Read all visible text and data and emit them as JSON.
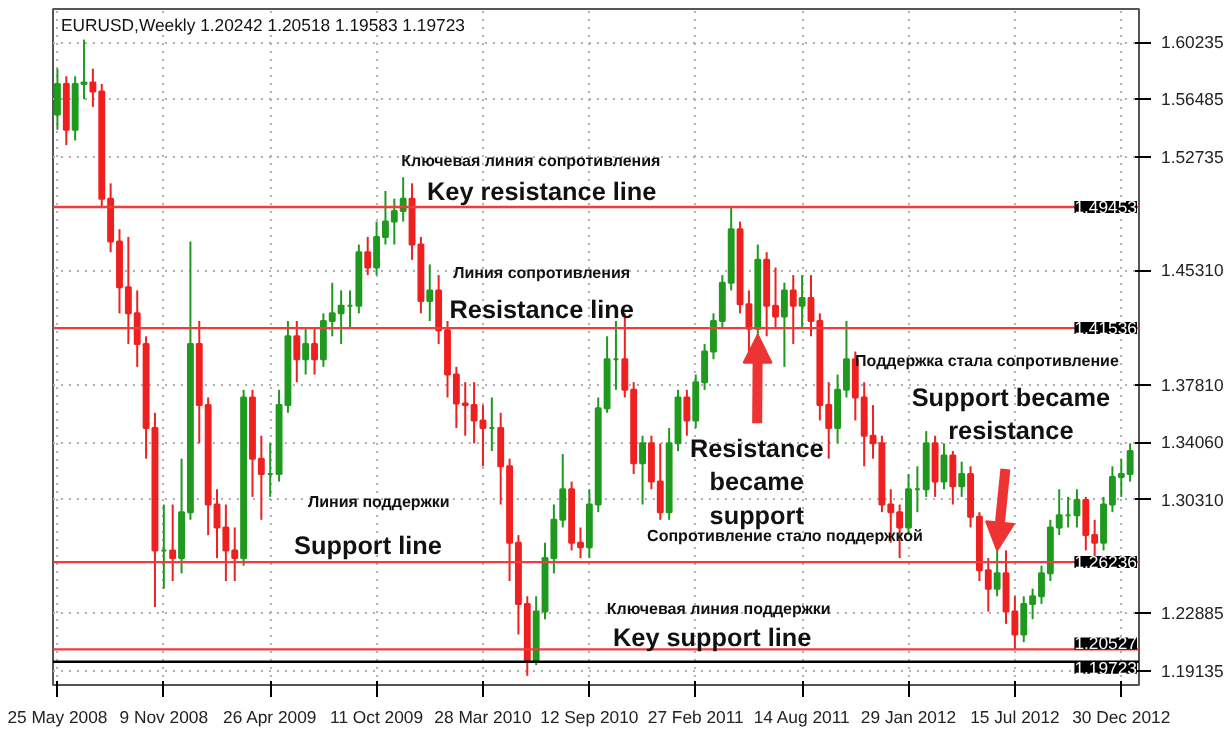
{
  "chart_data": {
    "type": "candlestick",
    "title": "EURUSD,Weekly  1.20242 1.20518 1.19583 1.19723",
    "x": [
      "2008-05-25",
      "2008-06-08",
      "2008-06-22",
      "2008-07-06",
      "2008-07-20",
      "2008-08-03",
      "2008-08-17",
      "2008-08-31",
      "2008-09-14",
      "2008-09-28",
      "2008-10-12",
      "2008-10-26",
      "2008-11-09",
      "2008-11-23",
      "2008-12-07",
      "2008-12-21",
      "2009-01-04",
      "2009-01-18",
      "2009-02-01",
      "2009-02-15",
      "2009-03-01",
      "2009-03-15",
      "2009-03-29",
      "2009-04-12",
      "2009-04-26",
      "2009-05-10",
      "2009-05-24",
      "2009-06-07",
      "2009-06-21",
      "2009-07-05",
      "2009-07-19",
      "2009-08-02",
      "2009-08-16",
      "2009-08-30",
      "2009-09-13",
      "2009-09-27",
      "2009-10-11",
      "2009-10-25",
      "2009-11-08",
      "2009-11-22",
      "2009-12-06",
      "2009-12-20",
      "2010-01-03",
      "2010-01-17",
      "2010-01-31",
      "2010-02-14",
      "2010-02-28",
      "2010-03-14",
      "2010-03-28",
      "2010-04-11",
      "2010-04-25",
      "2010-05-09",
      "2010-05-23",
      "2010-06-06",
      "2010-06-20",
      "2010-07-04",
      "2010-07-18",
      "2010-08-01",
      "2010-08-15",
      "2010-08-29",
      "2010-09-12",
      "2010-09-26",
      "2010-10-10",
      "2010-10-24",
      "2010-11-07",
      "2010-11-21",
      "2010-12-05",
      "2010-12-19",
      "2011-01-02",
      "2011-01-16",
      "2011-01-30",
      "2011-02-13",
      "2011-02-27",
      "2011-03-13",
      "2011-03-27",
      "2011-04-10",
      "2011-04-24",
      "2011-05-08",
      "2011-05-22",
      "2011-06-05",
      "2011-06-19",
      "2011-07-03",
      "2011-07-17",
      "2011-07-31",
      "2011-08-14",
      "2011-08-28",
      "2011-09-11",
      "2011-09-25",
      "2011-10-09",
      "2011-10-23",
      "2011-11-06",
      "2011-11-20",
      "2011-12-04",
      "2011-12-18",
      "2012-01-01",
      "2012-01-15",
      "2012-01-29",
      "2012-02-12",
      "2012-02-26",
      "2012-03-11",
      "2012-03-25",
      "2012-04-08",
      "2012-04-22",
      "2012-05-06",
      "2012-05-20",
      "2012-06-03",
      "2012-06-17",
      "2012-07-01",
      "2012-07-15",
      "2012-07-29",
      "2012-08-12",
      "2012-08-26",
      "2012-09-09",
      "2012-09-23",
      "2012-10-07",
      "2012-10-21",
      "2012-11-04",
      "2012-11-18",
      "2012-12-02",
      "2012-12-16",
      "2012-12-30",
      "2013-01-13"
    ],
    "ohlc": [
      [
        1.555,
        1.585,
        1.545,
        1.575
      ],
      [
        1.575,
        1.58,
        1.535,
        1.545
      ],
      [
        1.545,
        1.58,
        1.538,
        1.575
      ],
      [
        1.575,
        1.604,
        1.565,
        1.576
      ],
      [
        1.576,
        1.585,
        1.56,
        1.57
      ],
      [
        1.57,
        1.575,
        1.495,
        1.5
      ],
      [
        1.5,
        1.51,
        1.465,
        1.472
      ],
      [
        1.472,
        1.48,
        1.425,
        1.442
      ],
      [
        1.442,
        1.475,
        1.405,
        1.425
      ],
      [
        1.425,
        1.44,
        1.39,
        1.405
      ],
      [
        1.405,
        1.41,
        1.33,
        1.35
      ],
      [
        1.35,
        1.36,
        1.233,
        1.27
      ],
      [
        1.27,
        1.3,
        1.245,
        1.27
      ],
      [
        1.27,
        1.3,
        1.25,
        1.265
      ],
      [
        1.265,
        1.33,
        1.255,
        1.295
      ],
      [
        1.295,
        1.472,
        1.29,
        1.405
      ],
      [
        1.405,
        1.42,
        1.34,
        1.365
      ],
      [
        1.365,
        1.37,
        1.28,
        1.3
      ],
      [
        1.3,
        1.31,
        1.265,
        1.285
      ],
      [
        1.285,
        1.3,
        1.25,
        1.27
      ],
      [
        1.27,
        1.285,
        1.25,
        1.265
      ],
      [
        1.265,
        1.375,
        1.26,
        1.37
      ],
      [
        1.37,
        1.375,
        1.305,
        1.33
      ],
      [
        1.33,
        1.345,
        1.29,
        1.32
      ],
      [
        1.32,
        1.34,
        1.305,
        1.32
      ],
      [
        1.32,
        1.375,
        1.315,
        1.365
      ],
      [
        1.365,
        1.42,
        1.36,
        1.41
      ],
      [
        1.41,
        1.42,
        1.38,
        1.395
      ],
      [
        1.395,
        1.415,
        1.385,
        1.405
      ],
      [
        1.405,
        1.415,
        1.385,
        1.395
      ],
      [
        1.395,
        1.425,
        1.39,
        1.42
      ],
      [
        1.42,
        1.445,
        1.41,
        1.425
      ],
      [
        1.425,
        1.44,
        1.405,
        1.43
      ],
      [
        1.43,
        1.44,
        1.415,
        1.43
      ],
      [
        1.43,
        1.47,
        1.425,
        1.465
      ],
      [
        1.465,
        1.475,
        1.45,
        1.455
      ],
      [
        1.455,
        1.485,
        1.45,
        1.475
      ],
      [
        1.475,
        1.505,
        1.47,
        1.485
      ],
      [
        1.485,
        1.5,
        1.47,
        1.492
      ],
      [
        1.492,
        1.514,
        1.485,
        1.5
      ],
      [
        1.5,
        1.51,
        1.46,
        1.47
      ],
      [
        1.47,
        1.475,
        1.425,
        1.433
      ],
      [
        1.433,
        1.457,
        1.42,
        1.44
      ],
      [
        1.44,
        1.45,
        1.405,
        1.414
      ],
      [
        1.414,
        1.42,
        1.37,
        1.385
      ],
      [
        1.385,
        1.39,
        1.35,
        1.366
      ],
      [
        1.366,
        1.38,
        1.345,
        1.365
      ],
      [
        1.365,
        1.38,
        1.34,
        1.355
      ],
      [
        1.355,
        1.365,
        1.325,
        1.35
      ],
      [
        1.35,
        1.37,
        1.335,
        1.35
      ],
      [
        1.35,
        1.36,
        1.3,
        1.325
      ],
      [
        1.325,
        1.33,
        1.25,
        1.275
      ],
      [
        1.275,
        1.28,
        1.215,
        1.235
      ],
      [
        1.235,
        1.24,
        1.188,
        1.197
      ],
      [
        1.197,
        1.24,
        1.195,
        1.23
      ],
      [
        1.23,
        1.275,
        1.225,
        1.265
      ],
      [
        1.265,
        1.3,
        1.255,
        1.29
      ],
      [
        1.29,
        1.333,
        1.285,
        1.31
      ],
      [
        1.31,
        1.315,
        1.27,
        1.275
      ],
      [
        1.275,
        1.285,
        1.265,
        1.272
      ],
      [
        1.272,
        1.31,
        1.265,
        1.3
      ],
      [
        1.3,
        1.37,
        1.295,
        1.363
      ],
      [
        1.363,
        1.41,
        1.36,
        1.395
      ],
      [
        1.395,
        1.42,
        1.375,
        1.395
      ],
      [
        1.395,
        1.425,
        1.37,
        1.375
      ],
      [
        1.375,
        1.38,
        1.32,
        1.327
      ],
      [
        1.327,
        1.345,
        1.3,
        1.34
      ],
      [
        1.34,
        1.345,
        1.31,
        1.315
      ],
      [
        1.315,
        1.34,
        1.29,
        1.295
      ],
      [
        1.295,
        1.35,
        1.29,
        1.34
      ],
      [
        1.34,
        1.375,
        1.335,
        1.37
      ],
      [
        1.37,
        1.375,
        1.345,
        1.355
      ],
      [
        1.355,
        1.385,
        1.35,
        1.38
      ],
      [
        1.38,
        1.405,
        1.375,
        1.4
      ],
      [
        1.4,
        1.425,
        1.395,
        1.42
      ],
      [
        1.42,
        1.45,
        1.415,
        1.445
      ],
      [
        1.445,
        1.494,
        1.44,
        1.48
      ],
      [
        1.48,
        1.485,
        1.425,
        1.431
      ],
      [
        1.431,
        1.44,
        1.4,
        1.415
      ],
      [
        1.415,
        1.47,
        1.41,
        1.46
      ],
      [
        1.46,
        1.465,
        1.41,
        1.43
      ],
      [
        1.43,
        1.455,
        1.415,
        1.423
      ],
      [
        1.423,
        1.445,
        1.39,
        1.44
      ],
      [
        1.44,
        1.45,
        1.405,
        1.43
      ],
      [
        1.43,
        1.45,
        1.415,
        1.435
      ],
      [
        1.435,
        1.45,
        1.41,
        1.42
      ],
      [
        1.42,
        1.425,
        1.355,
        1.365
      ],
      [
        1.365,
        1.38,
        1.33,
        1.35
      ],
      [
        1.35,
        1.385,
        1.34,
        1.375
      ],
      [
        1.375,
        1.42,
        1.37,
        1.395
      ],
      [
        1.395,
        1.4,
        1.355,
        1.37
      ],
      [
        1.37,
        1.38,
        1.325,
        1.345
      ],
      [
        1.345,
        1.365,
        1.33,
        1.34
      ],
      [
        1.34,
        1.345,
        1.295,
        1.3
      ],
      [
        1.3,
        1.31,
        1.275,
        1.295
      ],
      [
        1.295,
        1.3,
        1.265,
        1.285
      ],
      [
        1.285,
        1.32,
        1.28,
        1.31
      ],
      [
        1.31,
        1.325,
        1.295,
        1.31
      ],
      [
        1.31,
        1.348,
        1.305,
        1.34
      ],
      [
        1.34,
        1.345,
        1.305,
        1.315
      ],
      [
        1.315,
        1.34,
        1.31,
        1.332
      ],
      [
        1.332,
        1.335,
        1.3,
        1.312
      ],
      [
        1.312,
        1.328,
        1.305,
        1.32
      ],
      [
        1.32,
        1.325,
        1.285,
        1.292
      ],
      [
        1.292,
        1.295,
        1.25,
        1.257
      ],
      [
        1.257,
        1.265,
        1.23,
        1.245
      ],
      [
        1.245,
        1.27,
        1.24,
        1.255
      ],
      [
        1.255,
        1.27,
        1.222,
        1.23
      ],
      [
        1.23,
        1.24,
        1.205,
        1.215
      ],
      [
        1.215,
        1.24,
        1.21,
        1.235
      ],
      [
        1.235,
        1.245,
        1.225,
        1.24
      ],
      [
        1.24,
        1.26,
        1.235,
        1.255
      ],
      [
        1.255,
        1.29,
        1.25,
        1.285
      ],
      [
        1.285,
        1.31,
        1.28,
        1.293
      ],
      [
        1.293,
        1.305,
        1.285,
        1.293
      ],
      [
        1.293,
        1.31,
        1.285,
        1.303
      ],
      [
        1.303,
        1.305,
        1.27,
        1.28
      ],
      [
        1.28,
        1.29,
        1.265,
        1.275
      ],
      [
        1.275,
        1.305,
        1.27,
        1.3
      ],
      [
        1.3,
        1.325,
        1.295,
        1.318
      ],
      [
        1.318,
        1.33,
        1.305,
        1.32
      ],
      [
        1.32,
        1.34,
        1.315,
        1.335
      ]
    ],
    "xlim": [
      "2008-05-18",
      "2013-01-27"
    ],
    "xticks": [
      {
        "value": "2008-05-25",
        "label": "25 May 2008"
      },
      {
        "value": "2008-11-09",
        "label": "9 Nov 2008"
      },
      {
        "value": "2009-04-26",
        "label": "26 Apr 2009"
      },
      {
        "value": "2009-10-11",
        "label": "11 Oct 2009"
      },
      {
        "value": "2010-03-28",
        "label": "28 Mar 2010"
      },
      {
        "value": "2010-09-12",
        "label": "12 Sep 2010"
      },
      {
        "value": "2011-02-27",
        "label": "27 Feb 2011"
      },
      {
        "value": "2011-08-14",
        "label": "14 Aug 2011"
      },
      {
        "value": "2012-01-29",
        "label": "29 Jan 2012"
      },
      {
        "value": "2012-07-15",
        "label": "15 Jul 2012"
      },
      {
        "value": "2012-12-30",
        "label": "30 Dec 2012"
      }
    ],
    "ylim": [
      1.182,
      1.624
    ],
    "yticks": [
      1.60235,
      1.56485,
      1.52735,
      {
        "value": 1.4531,
        "label": "1.45310"
      },
      {
        "value": 1.3781,
        "label": "1.37810"
      },
      {
        "value": 1.3406,
        "label": "1.34060"
      },
      {
        "value": 1.3031,
        "label": "1.30310"
      },
      1.22885,
      1.19135
    ],
    "grid": true,
    "ref_lines": [
      {
        "axis": "y",
        "value": 1.49453,
        "label": "1.49453",
        "color": "#f03c3c"
      },
      {
        "axis": "y",
        "value": 1.41536,
        "label": "1.41536",
        "color": "#f03c3c"
      },
      {
        "axis": "y",
        "value": 1.26236,
        "label": "1.26236",
        "color": "#f03c3c"
      },
      {
        "axis": "y",
        "value": 1.20527,
        "label": "1.20527",
        "color": "#f03c3c"
      },
      {
        "axis": "y",
        "value": 1.19723,
        "label": "1.19723",
        "color": "#000000"
      }
    ],
    "annotations": [
      "Ключевая линия сопротивления",
      "Key resistance line",
      "Линия сопротивления",
      "Resistance line",
      "Линия поддержки",
      "Support line",
      {
        "text": "Resistance\nbecame\nsupport",
        "x": "2011-06-05",
        "y": 1.411
      },
      "Сопротивление стало поддержкой",
      "Поддержка стала сопротивление",
      {
        "text": "Support became\nresistance",
        "x": "2012-06-17",
        "y": 1.27
      },
      "Ключевая линия поддержки",
      "Key support line"
    ]
  }
}
